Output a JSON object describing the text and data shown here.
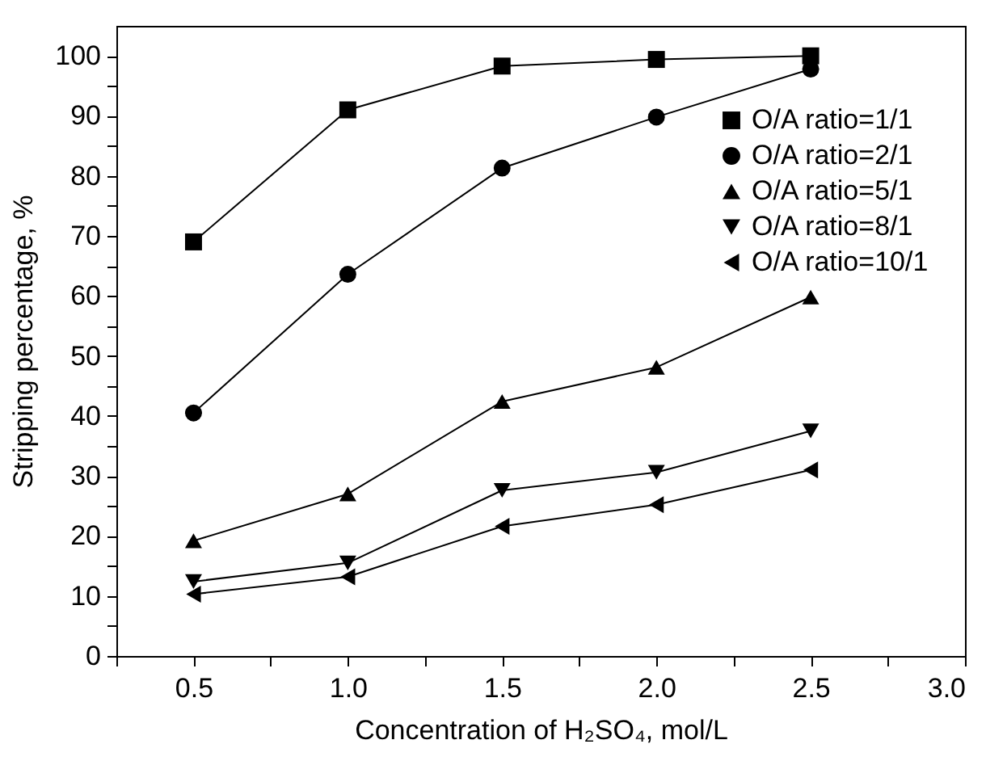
{
  "chart_data": {
    "type": "line",
    "xlabel": "Concentration of H₂SO₄, mol/L",
    "ylabel": "Stripping percentage, %",
    "x": [
      0.5,
      1.0,
      1.5,
      2.0,
      2.5
    ],
    "xlim": [
      0.25,
      3.0
    ],
    "xticks": [
      {
        "value": 0.25,
        "label": null
      },
      "0.5",
      {
        "value": 0.75,
        "label": null
      },
      {
        "value": 1.0,
        "label": "1.0"
      },
      {
        "value": 1.25,
        "label": null
      },
      {
        "value": 1.5,
        "label": "1.5"
      },
      {
        "value": 1.75,
        "label": null
      },
      {
        "value": 2.0,
        "label": "2.0"
      },
      {
        "value": 2.25,
        "label": null
      },
      {
        "value": 2.5,
        "label": "2.5"
      },
      {
        "value": 2.75,
        "label": null
      },
      {
        "value": 3.0,
        "label": "3.0"
      }
    ],
    "ylim": [
      0,
      105
    ],
    "yticks": [
      0,
      {
        "value": 5,
        "label": null
      },
      10,
      {
        "value": 15,
        "label": null
      },
      20,
      {
        "value": 25,
        "label": null
      },
      30,
      {
        "value": 35,
        "label": null
      },
      40,
      {
        "value": 45,
        "label": null
      },
      50,
      {
        "value": 55,
        "label": null
      },
      60,
      {
        "value": 65,
        "label": null
      },
      70,
      {
        "value": 75,
        "label": null
      },
      80,
      {
        "value": 85,
        "label": null
      },
      90,
      {
        "value": 95,
        "label": null
      },
      100
    ],
    "grid": false,
    "legend": "top right",
    "line_style": "solid",
    "series": [
      {
        "name": "O/A ratio=1/1",
        "color": "#000000",
        "marker": "square",
        "values": [
          69,
          91,
          98.3,
          99.4,
          100
        ]
      },
      {
        "name": "O/A ratio=2/1",
        "color": "#000000",
        "marker": "circle",
        "values": [
          40.5,
          63.6,
          81.3,
          89.8,
          97.8
        ]
      },
      {
        "name": "O/A ratio=5/1",
        "color": "#000000",
        "marker": "triangle-up",
        "values": [
          19.2,
          27,
          42.4,
          48.1,
          59.8
        ]
      },
      {
        "name": "O/A ratio=8/1",
        "color": "#000000",
        "marker": "triangle-down",
        "values": [
          12.4,
          15.5,
          27.6,
          30.6,
          37.5
        ]
      },
      {
        "name": "O/A ratio=10/1",
        "color": "#000000",
        "marker": "triangle-left",
        "values": [
          10.3,
          13.2,
          21.6,
          25.2,
          31
        ]
      }
    ]
  }
}
